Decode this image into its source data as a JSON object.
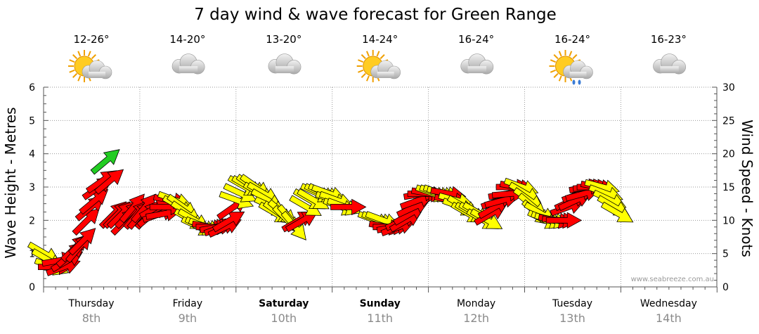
{
  "chart_data": {
    "type": "scatter",
    "title": "7 day wind & wave forecast for Green Range",
    "ylabel_left": "Wave Height - Metres",
    "ylabel_right": "Wind Speed - Knots",
    "ylim_left": [
      0,
      6
    ],
    "ylim_right": [
      0,
      30
    ],
    "yticks_left": [
      "0",
      "1",
      "2",
      "3",
      "4",
      "5",
      "6"
    ],
    "yticks_right": [
      "0",
      "5",
      "10",
      "15",
      "20",
      "25",
      "30"
    ],
    "grid": true,
    "days": [
      {
        "day": "Thursday",
        "date": "8th",
        "temp": "12-26°",
        "icon": "sun-cloud-icon",
        "bold": false
      },
      {
        "day": "Friday",
        "date": "9th",
        "temp": "14-20°",
        "icon": "cloud-icon",
        "bold": false
      },
      {
        "day": "Saturday",
        "date": "10th",
        "temp": "13-20°",
        "icon": "cloud-icon",
        "bold": true
      },
      {
        "day": "Sunday",
        "date": "11th",
        "temp": "14-24°",
        "icon": "sun-cloud-icon",
        "bold": true
      },
      {
        "day": "Monday",
        "date": "12th",
        "temp": "16-24°",
        "icon": "cloud-icon",
        "bold": false
      },
      {
        "day": "Tuesday",
        "date": "13th",
        "temp": "16-24°",
        "icon": "sun-cloud-rain-icon",
        "bold": false
      },
      {
        "day": "Wednesday",
        "date": "14th",
        "temp": "16-23°",
        "icon": "cloud-icon",
        "bold": false
      }
    ],
    "legend": {
      "red": "#ff0000",
      "yellow": "#ffff00",
      "green": "#22cc22"
    },
    "series": [
      {
        "values": [
          [
            0.0,
            5,
            300
          ],
          [
            0.04,
            4,
            300
          ],
          [
            0.08,
            3,
            290
          ],
          [
            0.12,
            3,
            270
          ],
          [
            0.16,
            4,
            260
          ],
          [
            0.2,
            3,
            250
          ],
          [
            0.24,
            4,
            240
          ],
          [
            0.28,
            5,
            230
          ],
          [
            0.32,
            6,
            225
          ],
          [
            0.36,
            6,
            220
          ],
          [
            0.4,
            7,
            225
          ],
          [
            0.44,
            10,
            225
          ],
          [
            0.48,
            12,
            230
          ],
          [
            0.52,
            13,
            230
          ],
          [
            0.56,
            15,
            235
          ],
          [
            0.6,
            16,
            235
          ],
          [
            0.64,
            19,
            230
          ],
          [
            0.68,
            16,
            230
          ],
          [
            0.72,
            11,
            225
          ],
          [
            0.76,
            11,
            225
          ],
          [
            0.8,
            11,
            225
          ],
          [
            0.84,
            10,
            225
          ],
          [
            0.88,
            11,
            225
          ],
          [
            0.92,
            12,
            220
          ],
          [
            0.96,
            11,
            220
          ],
          [
            1.0,
            11,
            220
          ],
          [
            1.04,
            12,
            220
          ],
          [
            1.08,
            11,
            220
          ],
          [
            1.12,
            11,
            230
          ],
          [
            1.16,
            12,
            240
          ],
          [
            1.2,
            11,
            250
          ],
          [
            1.24,
            11,
            260
          ],
          [
            1.28,
            12,
            270
          ],
          [
            1.32,
            13,
            280
          ],
          [
            1.36,
            13,
            290
          ],
          [
            1.4,
            12,
            300
          ],
          [
            1.44,
            12,
            305
          ],
          [
            1.48,
            11,
            305
          ],
          [
            1.52,
            10,
            300
          ],
          [
            1.56,
            10,
            300
          ],
          [
            1.6,
            9,
            295
          ],
          [
            1.64,
            9,
            295
          ],
          [
            1.68,
            9,
            290
          ],
          [
            1.72,
            9,
            280
          ],
          [
            1.76,
            9,
            270
          ],
          [
            1.8,
            9,
            260
          ],
          [
            1.84,
            9,
            250
          ],
          [
            1.88,
            9,
            245
          ],
          [
            1.92,
            10,
            240
          ],
          [
            1.96,
            12,
            235
          ],
          [
            2.0,
            13,
            290
          ],
          [
            2.04,
            14,
            295
          ],
          [
            2.08,
            15,
            300
          ],
          [
            2.12,
            15,
            300
          ],
          [
            2.16,
            15,
            305
          ],
          [
            2.2,
            15,
            305
          ],
          [
            2.24,
            14,
            300
          ],
          [
            2.28,
            14,
            300
          ],
          [
            2.32,
            13,
            300
          ],
          [
            2.36,
            12,
            295
          ],
          [
            2.4,
            11,
            300
          ],
          [
            2.44,
            11,
            305
          ],
          [
            2.48,
            11,
            310
          ],
          [
            2.52,
            10,
            315
          ],
          [
            2.56,
            10,
            320
          ],
          [
            2.6,
            9,
            320
          ],
          [
            2.64,
            10,
            240
          ],
          [
            2.68,
            10,
            240
          ],
          [
            2.72,
            12,
            300
          ],
          [
            2.76,
            13,
            300
          ],
          [
            2.8,
            13,
            300
          ],
          [
            2.84,
            14,
            295
          ],
          [
            2.88,
            14,
            295
          ],
          [
            2.92,
            14,
            295
          ],
          [
            2.96,
            14,
            290
          ],
          [
            3.0,
            13,
            290
          ],
          [
            3.04,
            13,
            290
          ],
          [
            3.08,
            12,
            290
          ],
          [
            3.12,
            12,
            290
          ],
          [
            3.16,
            12,
            270
          ],
          [
            3.44,
            10,
            290
          ],
          [
            3.48,
            10,
            290
          ],
          [
            3.52,
            10,
            290
          ],
          [
            3.56,
            9,
            280
          ],
          [
            3.6,
            9,
            270
          ],
          [
            3.64,
            9,
            260
          ],
          [
            3.68,
            9,
            250
          ],
          [
            3.72,
            10,
            245
          ],
          [
            3.76,
            10,
            240
          ],
          [
            3.8,
            11,
            240
          ],
          [
            3.84,
            12,
            245
          ],
          [
            3.88,
            13,
            250
          ],
          [
            3.92,
            14,
            260
          ],
          [
            3.96,
            14,
            270
          ],
          [
            4.0,
            14,
            280
          ],
          [
            4.04,
            14,
            290
          ],
          [
            4.08,
            14,
            290
          ],
          [
            4.12,
            14,
            290
          ],
          [
            4.16,
            14,
            285
          ],
          [
            4.2,
            14,
            280
          ],
          [
            4.24,
            13,
            280
          ],
          [
            4.28,
            13,
            285
          ],
          [
            4.32,
            12,
            290
          ],
          [
            4.36,
            12,
            300
          ],
          [
            4.4,
            11,
            300
          ],
          [
            4.44,
            11,
            300
          ],
          [
            4.48,
            11,
            300
          ],
          [
            4.52,
            11,
            300
          ],
          [
            4.56,
            10,
            300
          ],
          [
            4.6,
            10,
            300
          ],
          [
            4.64,
            11,
            240
          ],
          [
            4.68,
            12,
            240
          ],
          [
            4.72,
            13,
            250
          ],
          [
            4.76,
            13,
            255
          ],
          [
            4.8,
            14,
            260
          ],
          [
            4.84,
            14,
            265
          ],
          [
            4.88,
            15,
            270
          ],
          [
            4.92,
            15,
            280
          ],
          [
            4.96,
            15,
            290
          ],
          [
            5.0,
            14,
            300
          ],
          [
            5.04,
            13,
            305
          ],
          [
            5.08,
            12,
            310
          ],
          [
            5.12,
            11,
            310
          ],
          [
            5.16,
            11,
            300
          ],
          [
            5.2,
            10,
            295
          ],
          [
            5.24,
            10,
            290
          ],
          [
            5.28,
            10,
            285
          ],
          [
            5.32,
            10,
            280
          ],
          [
            5.36,
            10,
            275
          ],
          [
            5.4,
            10,
            270
          ],
          [
            5.44,
            12,
            250
          ],
          [
            5.48,
            13,
            245
          ],
          [
            5.52,
            13,
            245
          ],
          [
            5.56,
            14,
            250
          ],
          [
            5.6,
            14,
            255
          ],
          [
            5.64,
            15,
            260
          ],
          [
            5.68,
            15,
            265
          ],
          [
            5.72,
            15,
            270
          ],
          [
            5.76,
            15,
            280
          ],
          [
            5.8,
            15,
            285
          ],
          [
            5.84,
            14,
            290
          ],
          [
            5.88,
            13,
            295
          ],
          [
            5.92,
            12,
            300
          ],
          [
            5.96,
            11,
            300
          ]
        ]
      }
    ]
  },
  "watermark": "www.seabreeze.com.au"
}
